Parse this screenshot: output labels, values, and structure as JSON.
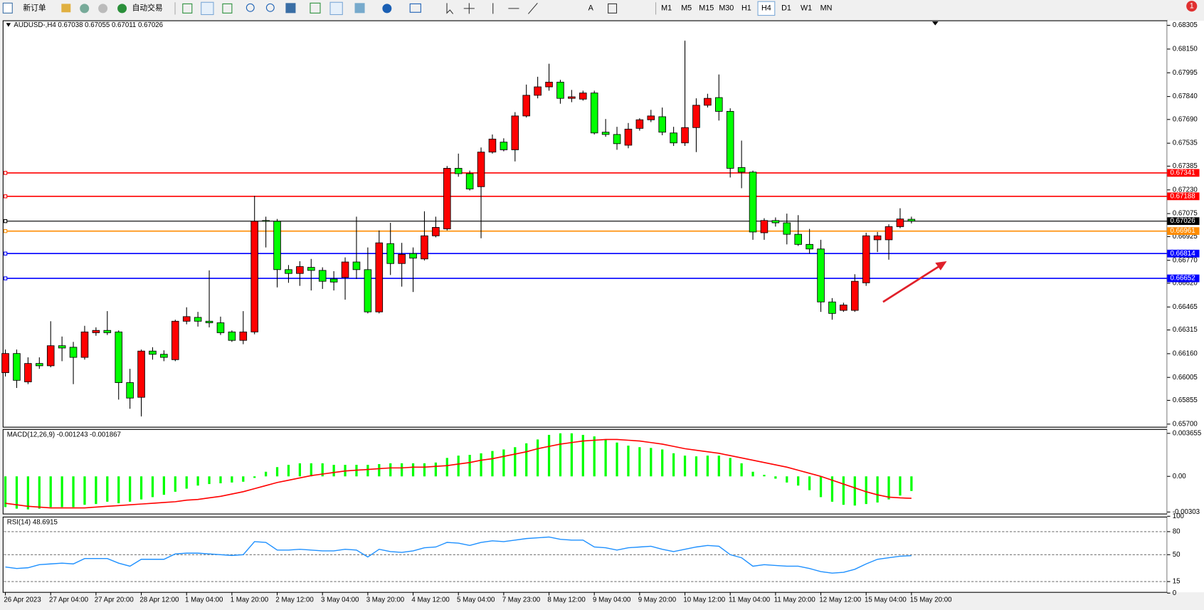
{
  "toolbar": {
    "new_order": "新订单",
    "auto_trading": "自动交易",
    "timeframes": [
      "M1",
      "M5",
      "M15",
      "M30",
      "H1",
      "H4",
      "D1",
      "W1",
      "MN"
    ],
    "active_timeframe": "H4",
    "notifications": 1
  },
  "chart_data": [
    {
      "type": "candlestick",
      "title": "AUDUSD-,H4  0.67038 0.67055 0.67011 0.67026",
      "up_color": "#ff0000",
      "down_color": "#00ff00",
      "categories": [
        "26 Apr 2023",
        null,
        null,
        null,
        "27 Apr 04:00",
        null,
        null,
        null,
        "27 Apr 20:00",
        null,
        null,
        null,
        "28 Apr 12:00",
        null,
        null,
        null,
        "1 May 04:00",
        null,
        null,
        null,
        "1 May 20:00",
        null,
        null,
        null,
        "2 May 12:00",
        null,
        null,
        null,
        "3 May 04:00",
        null,
        null,
        null,
        "3 May 20:00",
        null,
        null,
        null,
        "4 May 12:00",
        null,
        null,
        null,
        "5 May 04:00",
        null,
        null,
        null,
        "7 May 23:00",
        null,
        null,
        null,
        "8 May 12:00",
        null,
        null,
        null,
        "9 May 04:00",
        null,
        null,
        null,
        "9 May 20:00",
        null,
        null,
        null,
        "10 May 12:00",
        null,
        null,
        null,
        "11 May 04:00",
        null,
        null,
        null,
        "11 May 20:00",
        null,
        null,
        null,
        "12 May 12:00",
        null,
        null,
        null,
        "15 May 04:00",
        null,
        null,
        null,
        "15 May 20:00"
      ],
      "open": [
        0.66036,
        0.66161,
        0.65976,
        0.66096,
        0.66081,
        0.66212,
        0.66202,
        0.66136,
        0.66297,
        0.66312,
        0.66302,
        0.65971,
        0.65875,
        0.66177,
        0.66156,
        0.66121,
        0.66372,
        0.66397,
        0.66372,
        0.66362,
        0.66302,
        0.66247,
        0.66302,
        0.6703,
        0.67025,
        0.66709,
        0.66684,
        0.66724,
        0.66704,
        0.66648,
        0.66658,
        0.66759,
        0.66709,
        0.66433,
        0.66879,
        0.66749,
        0.66814,
        0.66779,
        0.6693,
        0.66975,
        0.67371,
        0.67336,
        0.67251,
        0.67477,
        0.67542,
        0.67492,
        0.67713,
        0.67848,
        0.67903,
        0.67934,
        0.67828,
        0.67823,
        0.67863,
        0.67607,
        0.67592,
        0.67522,
        0.67632,
        0.67688,
        0.67708,
        0.67602,
        0.67537,
        0.67637,
        0.67783,
        0.67833,
        0.67743,
        0.67376,
        0.67346,
        0.6695,
        0.6703,
        0.67015,
        0.6694,
        0.66874,
        0.66844,
        0.66498,
        0.66443,
        0.66443,
        0.66623,
        0.66904,
        0.66904,
        0.6699,
        0.67038
      ],
      "high": [
        0.66187,
        0.66187,
        0.66136,
        0.66136,
        0.66372,
        0.66272,
        0.66237,
        0.66342,
        0.66332,
        0.66438,
        0.66312,
        0.66061,
        0.66187,
        0.66202,
        0.66182,
        0.66382,
        0.66463,
        0.66433,
        0.66704,
        0.66402,
        0.66312,
        0.66438,
        0.67191,
        0.67055,
        0.6704,
        0.66739,
        0.66764,
        0.66779,
        0.66724,
        0.66699,
        0.66789,
        0.67055,
        0.66854,
        0.66965,
        0.67015,
        0.66884,
        0.66854,
        0.6709,
        0.67055,
        0.67386,
        0.67467,
        0.67356,
        0.67507,
        0.67592,
        0.67567,
        0.67738,
        0.67918,
        0.67969,
        0.68054,
        0.67949,
        0.67883,
        0.67878,
        0.67878,
        0.67693,
        0.67642,
        0.67667,
        0.67698,
        0.67753,
        0.67768,
        0.67642,
        0.68205,
        0.67828,
        0.67858,
        0.67984,
        0.67763,
        0.67552,
        0.67356,
        0.67045,
        0.6705,
        0.67075,
        0.67065,
        0.66975,
        0.66904,
        0.66523,
        0.66493,
        0.66679,
        0.6695,
        0.66955,
        0.67005,
        0.6711,
        0.67055
      ],
      "low": [
        0.66011,
        0.65936,
        0.65961,
        0.66061,
        0.66071,
        0.66111,
        0.65961,
        0.66121,
        0.66277,
        0.66282,
        0.6586,
        0.658,
        0.6575,
        0.66121,
        0.66111,
        0.66111,
        0.66352,
        0.66337,
        0.66332,
        0.66282,
        0.66237,
        0.66222,
        0.66287,
        0.66854,
        0.66593,
        0.66623,
        0.66603,
        0.66573,
        0.66583,
        0.66573,
        0.66513,
        0.66648,
        0.66423,
        0.66423,
        0.66674,
        0.66598,
        0.66563,
        0.66769,
        0.6692,
        0.66965,
        0.67316,
        0.67226,
        0.66914,
        0.67467,
        0.67482,
        0.67416,
        0.67703,
        0.67828,
        0.67878,
        0.67793,
        0.67803,
        0.67813,
        0.67592,
        0.67577,
        0.67492,
        0.67502,
        0.67617,
        0.67673,
        0.67587,
        0.67517,
        0.67517,
        0.67477,
        0.67768,
        0.67683,
        0.67311,
        0.67241,
        0.66904,
        0.66904,
        0.6699,
        0.66874,
        0.66864,
        0.66814,
        0.66433,
        0.66382,
        0.66433,
        0.66433,
        0.66603,
        0.66824,
        0.66774,
        0.6698,
        0.67011
      ],
      "close": [
        0.66161,
        0.65986,
        0.66096,
        0.66081,
        0.66212,
        0.66197,
        0.66136,
        0.66302,
        0.66312,
        0.66297,
        0.65971,
        0.6587,
        0.66177,
        0.66156,
        0.66136,
        0.66372,
        0.66402,
        0.66372,
        0.66362,
        0.66297,
        0.66247,
        0.66302,
        0.67025,
        0.67025,
        0.66709,
        0.66684,
        0.66729,
        0.66704,
        0.66633,
        0.66628,
        0.66759,
        0.66709,
        0.66433,
        0.66884,
        0.66749,
        0.66809,
        0.66784,
        0.6693,
        0.66985,
        0.67371,
        0.67336,
        0.67236,
        0.67477,
        0.67562,
        0.67492,
        0.67713,
        0.67848,
        0.67903,
        0.67934,
        0.67828,
        0.67838,
        0.67863,
        0.67602,
        0.67592,
        0.67532,
        0.67627,
        0.67688,
        0.67713,
        0.67607,
        0.67537,
        0.67637,
        0.67783,
        0.67828,
        0.67743,
        0.67371,
        0.67346,
        0.66955,
        0.6703,
        0.67015,
        0.6694,
        0.66874,
        0.66844,
        0.66498,
        0.66423,
        0.66478,
        0.66633,
        0.6693,
        0.6693,
        0.6699,
        0.6704,
        0.67026
      ],
      "ylim": [
        0.6568,
        0.68335
      ],
      "yticks": [
        0.68305,
        {
          "value": 0.6815,
          "label": "0.68150"
        },
        0.67995,
        {
          "value": 0.6784,
          "label": "0.67840"
        },
        {
          "value": 0.6769,
          "label": "0.67690"
        },
        0.67535,
        0.67385,
        {
          "value": 0.6723,
          "label": "0.67230"
        },
        0.67075,
        0.66925,
        {
          "value": 0.6677,
          "label": "0.66770"
        },
        {
          "value": 0.6662,
          "label": "0.66620"
        },
        0.66465,
        0.66315,
        {
          "value": 0.6616,
          "label": "0.66160"
        },
        0.66005,
        0.65855,
        {
          "value": 0.657,
          "label": "0.65700"
        }
      ],
      "levels": [
        {
          "value": 0.67341,
          "color": "#ff0000"
        },
        {
          "value": 0.67188,
          "color": "#ff0000"
        },
        {
          "value": 0.67026,
          "color": "#000000"
        },
        {
          "value": 0.66961,
          "color": "#ff8c00"
        },
        {
          "value": 0.66814,
          "color": "#0000ff"
        },
        {
          "value": 0.66652,
          "color": "#0000ff"
        }
      ]
    },
    {
      "type": "macd",
      "title": "MACD(12,26,9) -0.001243 -0.001867",
      "histogram": {
        "color": "#00ff00",
        "values": [
          -0.002612,
          -0.002743,
          -0.002808,
          -0.002743,
          -0.002612,
          -0.002612,
          -0.002612,
          -0.002416,
          -0.002351,
          -0.002155,
          -0.002286,
          -0.002155,
          -0.001959,
          -0.001763,
          -0.001567,
          -0.001306,
          -0.001045,
          -0.000784,
          -0.000653,
          -0.000588,
          -0.000522,
          -0.000457,
          -0.000131,
          0.000392,
          0.000784,
          0.00098,
          0.00111,
          0.00111,
          0.00111,
          0.00098,
          0.00098,
          0.00098,
          0.00098,
          0.001045,
          0.00111,
          0.00111,
          0.00111,
          0.00111,
          0.001175,
          0.001567,
          0.001763,
          0.001828,
          0.001959,
          0.002155,
          0.002286,
          0.002481,
          0.002808,
          0.003134,
          0.003526,
          0.003657,
          0.003657,
          0.003526,
          0.003396,
          0.003134,
          0.002873,
          0.002612,
          0.002481,
          0.002416,
          0.002286,
          0.001959,
          0.001763,
          0.001698,
          0.001763,
          0.001763,
          0.001567,
          0.00111,
          0.000392,
          0.000131,
          -0.000196,
          -0.000522,
          -0.000784,
          -0.001175,
          -0.001763,
          -0.002155,
          -0.002416,
          -0.002481,
          -0.002351,
          -0.00222,
          -0.001959,
          -0.001633,
          -0.001243
        ]
      },
      "signal": {
        "color": "#ff0000",
        "values": [
          -0.002286,
          -0.002416,
          -0.002547,
          -0.002612,
          -0.002677,
          -0.002677,
          -0.002677,
          -0.002677,
          -0.002612,
          -0.002547,
          -0.002481,
          -0.002416,
          -0.002351,
          -0.002286,
          -0.00222,
          -0.002155,
          -0.002024,
          -0.001959,
          -0.001828,
          -0.001698,
          -0.001502,
          -0.001306,
          -0.001045,
          -0.000784,
          -0.000522,
          -0.000327,
          -0.000131,
          6.5e-05,
          0.000196,
          0.000327,
          0.000457,
          0.000522,
          0.000588,
          0.000653,
          0.000718,
          0.000718,
          0.000784,
          0.000784,
          0.000849,
          0.000914,
          0.001045,
          0.001175,
          0.001371,
          0.001502,
          0.001698,
          0.001894,
          0.00209,
          0.002351,
          0.002547,
          0.002743,
          0.002873,
          0.003004,
          0.003069,
          0.003134,
          0.003134,
          0.003069,
          0.003004,
          0.002873,
          0.002743,
          0.002547,
          0.002351,
          0.00222,
          0.00209,
          0.001959,
          0.001763,
          0.001567,
          0.001371,
          0.001175,
          0.00098,
          0.000784,
          0.000522,
          0.000261,
          0,
          -0.000327,
          -0.000653,
          -0.00098,
          -0.001306,
          -0.001567,
          -0.001763,
          -0.001828,
          -0.001867
        ]
      },
      "ylim": [
        -0.00313,
        0.00392
      ],
      "yticks": [
        0.003655,
        {
          "value": 0,
          "label": "0.00"
        },
        -0.00303
      ]
    },
    {
      "type": "line",
      "title": "RSI(14) 48.6915",
      "color": "#1e90ff",
      "values": [
        34,
        32,
        33,
        37,
        38,
        39,
        38,
        45,
        45,
        45,
        39,
        35,
        44,
        44,
        44,
        51,
        52,
        52,
        51,
        50,
        49,
        50,
        67,
        66,
        56,
        56,
        57,
        56,
        55,
        55,
        57,
        56,
        47,
        57,
        54,
        53,
        55,
        59,
        60,
        66,
        65,
        62,
        66,
        68,
        67,
        69,
        71,
        72,
        73,
        70,
        69,
        69,
        60,
        59,
        56,
        59,
        60,
        61,
        57,
        54,
        57,
        60,
        62,
        61,
        50,
        46,
        35,
        37,
        36,
        35,
        35,
        32,
        28,
        26,
        27,
        31,
        38,
        44,
        46,
        48,
        48.6915
      ],
      "ylim": [
        0,
        100
      ],
      "yticks": [
        100,
        80,
        50,
        15,
        0
      ],
      "levels": [
        80,
        50,
        15
      ]
    }
  ]
}
